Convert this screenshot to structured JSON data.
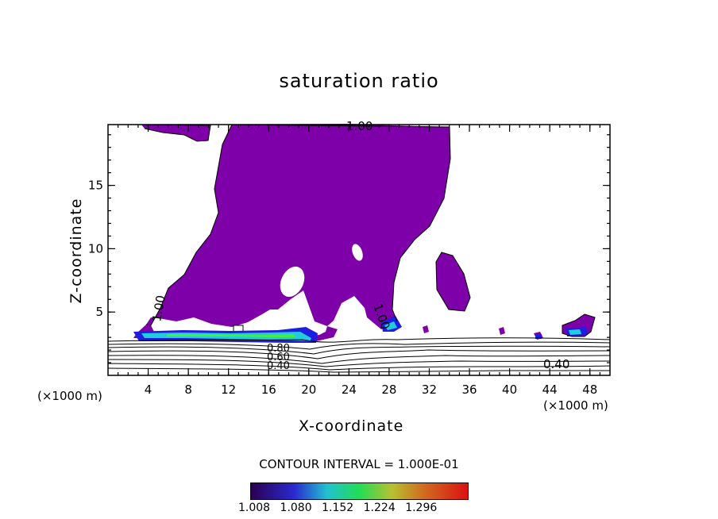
{
  "chart_data": {
    "type": "contour",
    "title": "saturation ratio",
    "xlabel": "X-coordinate",
    "ylabel": "Z-coordinate",
    "x_unit_left": "(×1000 m)",
    "x_unit_right": "(×1000 m)",
    "xlim": [
      0,
      50
    ],
    "ylim": [
      0,
      19.8
    ],
    "x_ticks": [
      4,
      8,
      12,
      16,
      20,
      24,
      28,
      32,
      36,
      40,
      44,
      48
    ],
    "y_ticks": [
      5,
      10,
      15
    ],
    "contour_labels": [
      "1.00",
      "1.00",
      "1.00",
      "0.80",
      "0.60",
      "0.40",
      "0.40"
    ],
    "contour_interval": "CONTOUR INTERVAL = 1.000E-01",
    "colorbar_ticks": [
      "1.008",
      "1.080",
      "1.152",
      "1.224",
      "1.296"
    ],
    "colors": {
      "supersat": "#7d00a8",
      "colorbar_low": "#2a0050",
      "colorbar_mid": "#22dd55",
      "colorbar_high": "#dd1111"
    }
  }
}
